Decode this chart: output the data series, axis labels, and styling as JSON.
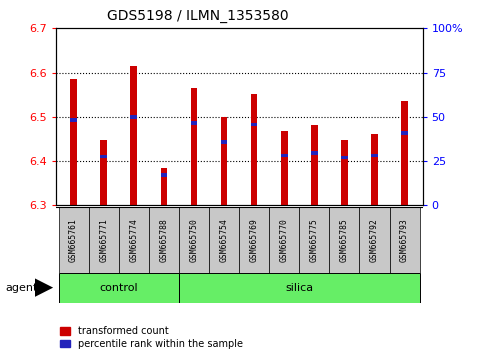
{
  "title": "GDS5198 / ILMN_1353580",
  "samples": [
    "GSM665761",
    "GSM665771",
    "GSM665774",
    "GSM665788",
    "GSM665750",
    "GSM665754",
    "GSM665769",
    "GSM665770",
    "GSM665775",
    "GSM665785",
    "GSM665792",
    "GSM665793"
  ],
  "n_control": 4,
  "red_values": [
    6.585,
    6.448,
    6.615,
    6.385,
    6.565,
    6.5,
    6.552,
    6.468,
    6.482,
    6.448,
    6.462,
    6.535
  ],
  "blue_values": [
    6.493,
    6.41,
    6.5,
    6.368,
    6.486,
    6.443,
    6.483,
    6.413,
    6.418,
    6.408,
    6.413,
    6.463
  ],
  "ymin": 6.3,
  "ymax": 6.7,
  "yticks_left": [
    6.3,
    6.4,
    6.5,
    6.6,
    6.7
  ],
  "right_ticks": [
    0,
    25,
    50,
    75,
    100
  ],
  "bar_color": "#CC0000",
  "blue_color": "#2222BB",
  "group_color": "#66EE66",
  "label_bg": "#C8C8C8",
  "legend_red": "transformed count",
  "legend_blue": "percentile rank within the sample",
  "agent_label": "agent",
  "control_label": "control",
  "silica_label": "silica"
}
